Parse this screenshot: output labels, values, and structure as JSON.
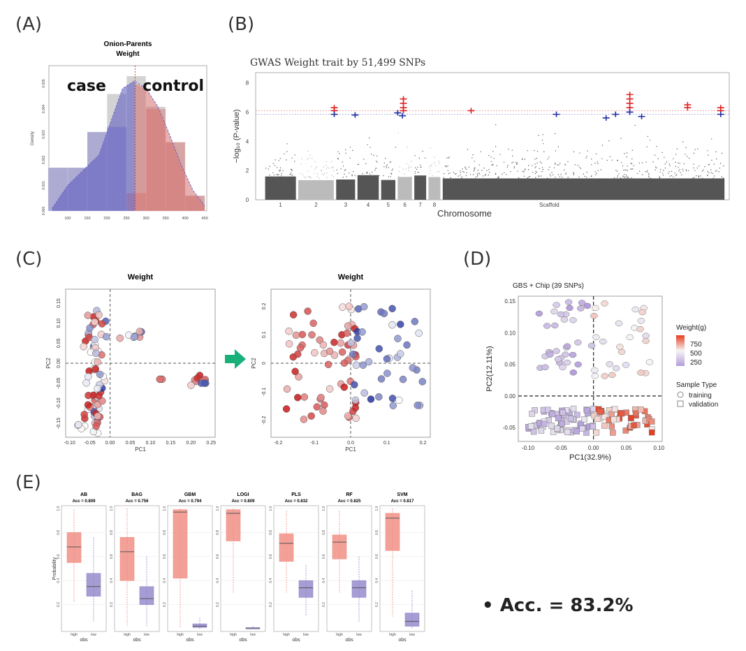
{
  "panels": {
    "a": "(A)",
    "b": "(B)",
    "c": "(C)",
    "d": "(D)",
    "e": "(E)"
  },
  "accuracy_note": "Acc. = 83.2%",
  "bullet": "•",
  "chart_data": [
    {
      "id": "A",
      "type": "bar",
      "title": "Onion-Parents",
      "subtitle": "Weight",
      "xlabel": "",
      "ylabel": "Density",
      "xticks": [
        "100",
        "150",
        "200",
        "250",
        "300",
        "350",
        "400",
        "450"
      ],
      "yticks": [
        "0.000",
        "0.001",
        "0.002",
        "0.003",
        "0.004",
        "0.005"
      ],
      "bins": [
        [
          50,
          100
        ],
        [
          100,
          150
        ],
        [
          150,
          200
        ],
        [
          200,
          250
        ],
        [
          250,
          300
        ],
        [
          300,
          350
        ],
        [
          350,
          400
        ],
        [
          400,
          450
        ]
      ],
      "values": [
        0.0017,
        0.0017,
        0.0031,
        0.0046,
        0.0053,
        0.0041,
        0.0027,
        0.0006
      ],
      "case_values": [
        0.0017,
        0.0017,
        0.0031,
        0.0033
      ],
      "control_values": [
        0.0007,
        0.004,
        0.0027,
        0.0006
      ],
      "density_x": [
        60,
        100,
        140,
        180,
        210,
        240,
        270,
        300,
        330,
        360,
        390,
        420,
        450
      ],
      "density_y": [
        0.0001,
        0.001,
        0.0016,
        0.0022,
        0.0035,
        0.0048,
        0.0051,
        0.0048,
        0.0041,
        0.003,
        0.0018,
        0.0008,
        0.0002
      ],
      "cutoff": 272,
      "annotations": [
        "case",
        "control"
      ],
      "xlim": [
        52,
        455
      ],
      "ylim": [
        0,
        0.0057
      ]
    },
    {
      "id": "B",
      "type": "scatter",
      "title": "GWAS Weight trait by 51,499 SNPs",
      "xlabel": "Chromosome",
      "ylabel": "−log₁₀ (P-value)",
      "x_categories": [
        "1",
        "2",
        "3",
        "4",
        "5",
        "6",
        "7",
        "8",
        "Scaffold"
      ],
      "yticks": [
        "0",
        "2",
        "4",
        "6",
        "8"
      ],
      "ylim": [
        0,
        8.7
      ],
      "thresholds": [
        6.1,
        5.85
      ],
      "red_hits": [
        {
          "x": 0.166,
          "y": [
            6.3,
            6.1
          ]
        },
        {
          "x": 0.312,
          "y": [
            6.9,
            6.6,
            6.3,
            6.1
          ]
        },
        {
          "x": 0.455,
          "y": [
            6.1
          ]
        },
        {
          "x": 0.79,
          "y": [
            7.2,
            6.9,
            6.6,
            6.3
          ]
        },
        {
          "x": 0.912,
          "y": [
            6.5,
            6.3
          ]
        },
        {
          "x": 0.982,
          "y": [
            6.3,
            6.1
          ]
        }
      ],
      "blue_hits": [
        {
          "x": 0.166,
          "y": 5.85
        },
        {
          "x": 0.3,
          "y": 5.95
        },
        {
          "x": 0.31,
          "y": 5.75
        },
        {
          "x": 0.21,
          "y": 5.8
        },
        {
          "x": 0.635,
          "y": 5.85
        },
        {
          "x": 0.74,
          "y": 5.6
        },
        {
          "x": 0.76,
          "y": 5.85
        },
        {
          "x": 0.79,
          "y": 6.0
        },
        {
          "x": 0.815,
          "y": 5.7
        },
        {
          "x": 0.982,
          "y": 5.85
        }
      ]
    },
    {
      "id": "C",
      "type": "scatter",
      "title": "Weight",
      "subplots": [
        {
          "xlabel": "PC1",
          "ylabel": "PC2",
          "xlim": [
            -0.11,
            0.26
          ],
          "ylim": [
            -0.185,
            0.185
          ],
          "xticks": [
            -0.1,
            -0.05,
            0,
            0.05,
            0.1,
            0.15,
            0.2,
            0.25
          ],
          "xtick_labels": [
            "-0.10",
            "-0.05",
            "0.00",
            "0.05",
            "0.10",
            "0.15",
            "0.20",
            "0.25"
          ],
          "yticks": [
            -0.15,
            -0.1,
            -0.05,
            0,
            0.05,
            0.1,
            0.15
          ],
          "ytick_labels": [
            "-0.15",
            "-0.10",
            "-0.05",
            "0.00",
            "0.05",
            "0.10",
            "0.15"
          ]
        },
        {
          "xlabel": "PC1",
          "ylabel": "PC2",
          "xlim": [
            -0.22,
            0.22
          ],
          "ylim": [
            -0.26,
            0.26
          ],
          "xticks": [
            -0.2,
            -0.1,
            0,
            0.1,
            0.2
          ],
          "xtick_labels": [
            "-0.2",
            "-0.1",
            "0.0",
            "0.1",
            "0.2"
          ],
          "yticks": [
            -0.2,
            -0.1,
            0,
            0.1,
            0.2
          ],
          "ytick_labels": [
            "-0.2",
            "-0.1",
            "0",
            "0.1",
            "0.2"
          ]
        }
      ],
      "color_scale": [
        "#1f2f9e",
        "#ffffff",
        "#c81414"
      ],
      "arrow_color": "#19b07a"
    },
    {
      "id": "D",
      "type": "scatter",
      "title": "GBS + Chip (39 SNPs)",
      "xlabel": "PC1(32.9%)",
      "ylabel": "PC2(12.11%)",
      "xlim": [
        -0.115,
        0.105
      ],
      "ylim": [
        -0.072,
        0.158
      ],
      "xticks": [
        -0.1,
        -0.05,
        0,
        0.05,
        0.1
      ],
      "xtick_labels": [
        "-0.10",
        "-0.05",
        "0.00",
        "0.05",
        "0.10"
      ],
      "yticks": [
        -0.05,
        0,
        0.05,
        0.1,
        0.15
      ],
      "ytick_labels": [
        "-0.05",
        "0.00",
        "0.05",
        "0.10",
        "0.15"
      ],
      "legend": {
        "title": "Weight(g)",
        "values": [
          "750",
          "500",
          "250"
        ],
        "sample_title": "Sample Type",
        "sample_types": [
          "training",
          "validation"
        ]
      },
      "color_scale": [
        "#b39ddb",
        "#f5f5f5",
        "#e63c1e"
      ]
    },
    {
      "id": "E",
      "type": "box",
      "models": [
        {
          "name": "AB",
          "acc": "Acc = 0.809",
          "high": {
            "q1": 0.55,
            "med": 0.68,
            "q3": 0.8,
            "lo": 0.22,
            "hi": 0.99
          },
          "low": {
            "q1": 0.27,
            "med": 0.35,
            "q3": 0.46,
            "lo": 0.06,
            "hi": 0.76
          }
        },
        {
          "name": "BAG",
          "acc": "Acc = 0.756",
          "high": {
            "q1": 0.4,
            "med": 0.64,
            "q3": 0.76,
            "lo": 0.02,
            "hi": 1.0
          },
          "low": {
            "q1": 0.2,
            "med": 0.25,
            "q3": 0.35,
            "lo": 0.02,
            "hi": 0.6
          }
        },
        {
          "name": "GBM",
          "acc": "Acc = 0.794",
          "high": {
            "q1": 0.42,
            "med": 0.97,
            "q3": 0.99,
            "lo": 0.01,
            "hi": 1.0
          },
          "low": {
            "q1": 0.01,
            "med": 0.02,
            "q3": 0.04,
            "lo": 0.0,
            "hi": 0.09
          }
        },
        {
          "name": "LOGI",
          "acc": "Acc = 0.809",
          "high": {
            "q1": 0.73,
            "med": 0.96,
            "q3": 0.99,
            "lo": 0.3,
            "hi": 1.0
          },
          "low": {
            "q1": 0.0,
            "med": 0.0,
            "q3": 0.01,
            "lo": 0.0,
            "hi": 0.02
          }
        },
        {
          "name": "PLS",
          "acc": "Acc = 0.832",
          "high": {
            "q1": 0.56,
            "med": 0.71,
            "q3": 0.79,
            "lo": 0.3,
            "hi": 0.98
          },
          "low": {
            "q1": 0.26,
            "med": 0.34,
            "q3": 0.4,
            "lo": 0.1,
            "hi": 0.53
          }
        },
        {
          "name": "RF",
          "acc": "Acc = 0.825",
          "high": {
            "q1": 0.58,
            "med": 0.72,
            "q3": 0.78,
            "lo": 0.3,
            "hi": 0.98
          },
          "low": {
            "q1": 0.26,
            "med": 0.34,
            "q3": 0.4,
            "lo": 0.05,
            "hi": 0.6
          }
        },
        {
          "name": "SVM",
          "acc": "Acc = 0.817",
          "high": {
            "q1": 0.65,
            "med": 0.92,
            "q3": 0.96,
            "lo": 0.1,
            "hi": 1.0
          },
          "low": {
            "q1": 0.02,
            "med": 0.06,
            "q3": 0.13,
            "lo": 0.0,
            "hi": 0.32
          }
        }
      ],
      "ylabel": "Probability",
      "xlabel": "obs",
      "categories": [
        "high",
        "low"
      ],
      "yticks": [
        0.2,
        0.4,
        0.6,
        0.8,
        1.0
      ],
      "ytick_labels": [
        "0.2",
        "0.4",
        "0.6",
        "0.8",
        "1.0"
      ],
      "high_color": "#f08a7e",
      "low_color": "#9085c9"
    }
  ]
}
